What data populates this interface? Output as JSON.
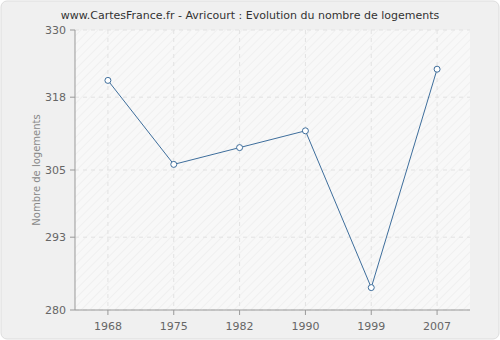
{
  "chart_data": {
    "type": "line",
    "title": "www.CartesFrance.fr - Avricourt : Evolution du nombre de logements",
    "y_label": "Nombre de logements",
    "categories": [
      "1968",
      "1975",
      "1982",
      "1990",
      "1999",
      "2007"
    ],
    "values": [
      321,
      306,
      309,
      312,
      284,
      323
    ],
    "color": "#3e6e9c",
    "marker": "circle",
    "ylim": [
      280,
      330
    ],
    "yticks": [
      280,
      293,
      305,
      318,
      330
    ],
    "grid": true
  }
}
